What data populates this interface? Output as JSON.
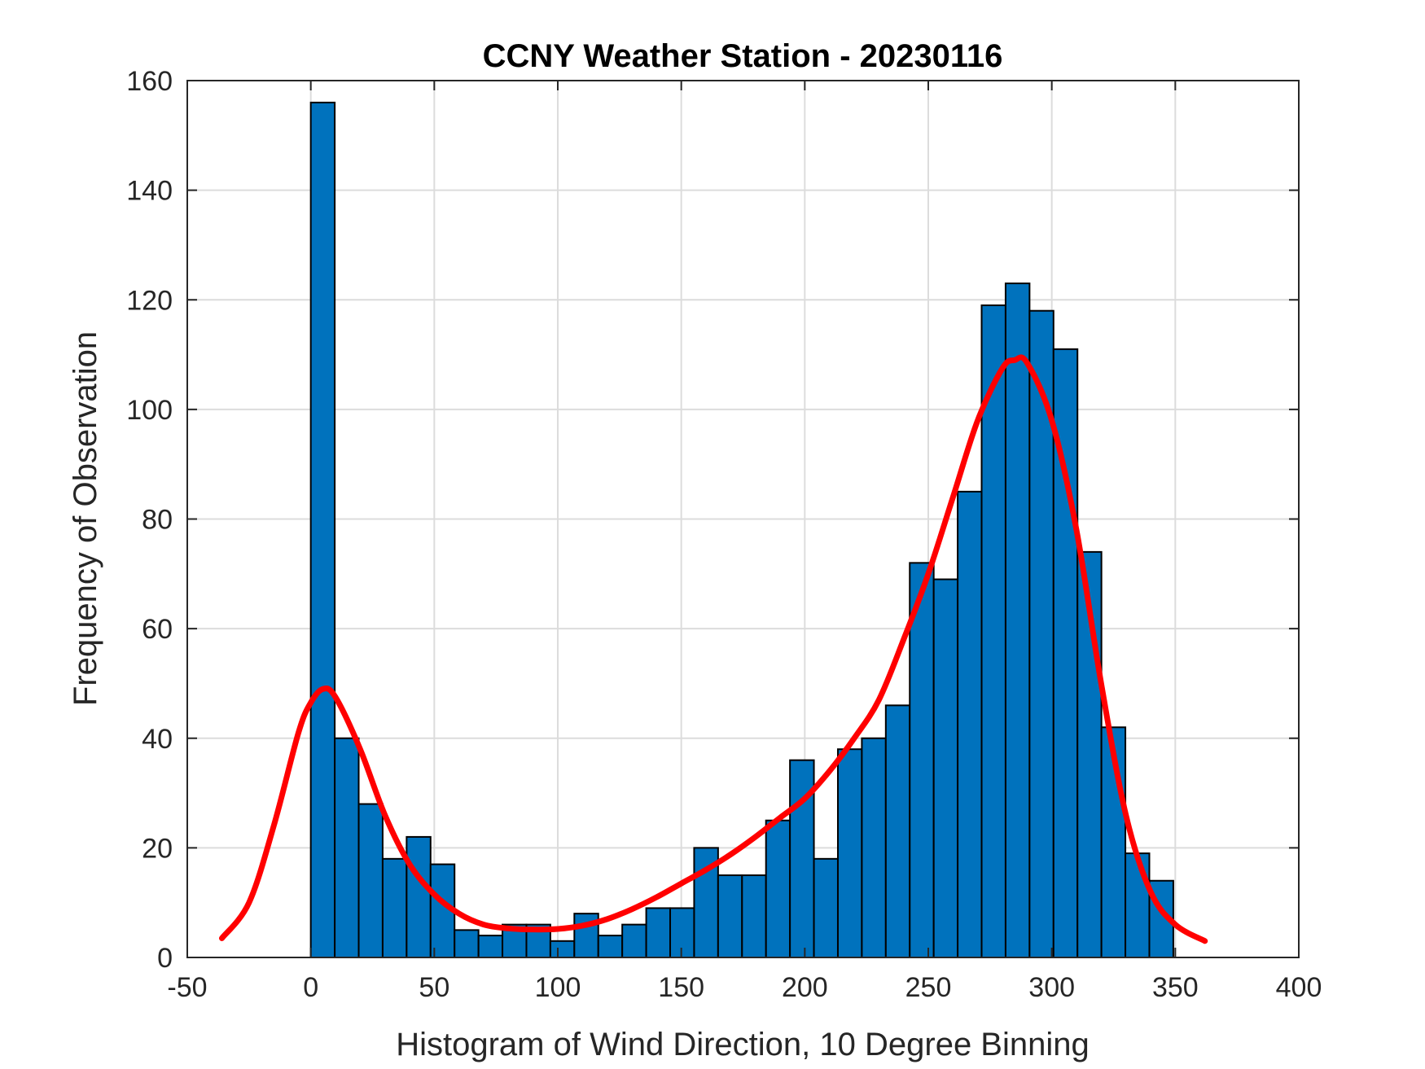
{
  "chart_data": {
    "type": "bar",
    "title": "CCNY Weather Station - 20230116",
    "xlabel": "Histogram of Wind Direction, 10 Degree Binning",
    "ylabel": "Frequency of Observation",
    "xlim": [
      -50,
      400
    ],
    "ylim": [
      0,
      160
    ],
    "xticks": [
      -50,
      0,
      50,
      100,
      150,
      200,
      250,
      300,
      350,
      400
    ],
    "yticks": [
      0,
      20,
      40,
      60,
      80,
      100,
      120,
      140,
      160
    ],
    "grid": true,
    "bin_width": 9.7,
    "bins": [
      {
        "start": 0,
        "value": 156
      },
      {
        "start": 9.7,
        "value": 40
      },
      {
        "start": 19.4,
        "value": 28
      },
      {
        "start": 29.1,
        "value": 18
      },
      {
        "start": 38.8,
        "value": 22
      },
      {
        "start": 48.5,
        "value": 17
      },
      {
        "start": 58.2,
        "value": 5
      },
      {
        "start": 67.9,
        "value": 4
      },
      {
        "start": 77.6,
        "value": 6
      },
      {
        "start": 87.3,
        "value": 6
      },
      {
        "start": 97.0,
        "value": 3
      },
      {
        "start": 106.7,
        "value": 8
      },
      {
        "start": 116.4,
        "value": 4
      },
      {
        "start": 126.1,
        "value": 6
      },
      {
        "start": 135.8,
        "value": 9
      },
      {
        "start": 145.5,
        "value": 9
      },
      {
        "start": 155.2,
        "value": 20
      },
      {
        "start": 164.9,
        "value": 15
      },
      {
        "start": 174.6,
        "value": 15
      },
      {
        "start": 184.3,
        "value": 25
      },
      {
        "start": 194.0,
        "value": 36
      },
      {
        "start": 203.7,
        "value": 18
      },
      {
        "start": 213.4,
        "value": 38
      },
      {
        "start": 223.1,
        "value": 40
      },
      {
        "start": 232.8,
        "value": 46
      },
      {
        "start": 242.5,
        "value": 72
      },
      {
        "start": 252.2,
        "value": 69
      },
      {
        "start": 261.9,
        "value": 85
      },
      {
        "start": 271.6,
        "value": 119
      },
      {
        "start": 281.3,
        "value": 123
      },
      {
        "start": 291.0,
        "value": 118
      },
      {
        "start": 300.7,
        "value": 111
      },
      {
        "start": 310.4,
        "value": 74
      },
      {
        "start": 320.1,
        "value": 42
      },
      {
        "start": 329.8,
        "value": 19
      },
      {
        "start": 339.5,
        "value": 14
      }
    ],
    "fit_curve": {
      "x": [
        -36,
        -25,
        -15,
        -5,
        0,
        5,
        10,
        20,
        30,
        40,
        50,
        60,
        70,
        80,
        90,
        100,
        110,
        120,
        130,
        140,
        150,
        160,
        170,
        180,
        190,
        200,
        210,
        220,
        230,
        240,
        250,
        260,
        270,
        280,
        285,
        290,
        300,
        310,
        320,
        330,
        340,
        350,
        362
      ],
      "y": [
        3.5,
        10,
        24,
        41,
        46.5,
        49,
        47.5,
        38,
        26,
        17,
        11.5,
        8,
        6,
        5.3,
        5.1,
        5.2,
        5.8,
        7,
        8.8,
        11,
        13.5,
        16,
        18.8,
        22,
        25.5,
        29,
        34,
        40,
        47,
        58,
        70,
        84,
        98,
        107.5,
        109,
        108.5,
        98,
        78,
        50,
        26,
        12,
        6,
        3
      ]
    },
    "bar_color": "#0072BD",
    "curve_color": "#FF0000"
  }
}
